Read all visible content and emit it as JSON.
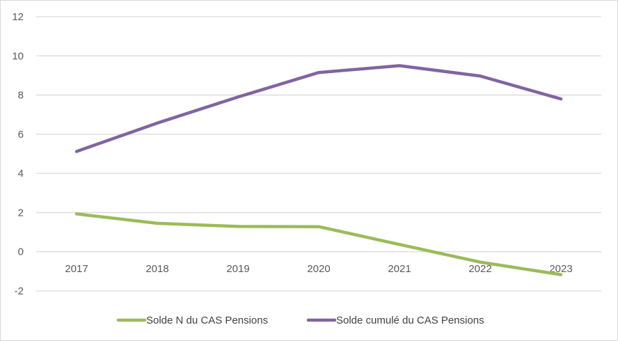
{
  "chart_data": {
    "type": "line",
    "title": "",
    "xlabel": "",
    "ylabel": "",
    "categories": [
      "2017",
      "2018",
      "2019",
      "2020",
      "2021",
      "2022",
      "2023"
    ],
    "ylim": [
      -2,
      12
    ],
    "yticks": [
      -2,
      0,
      2,
      4,
      6,
      8,
      10,
      12
    ],
    "ytick_labels": [
      "-2",
      "0",
      "2",
      "4",
      "6",
      "8",
      "10",
      "12"
    ],
    "grid": true,
    "legend_position": "bottom",
    "series": [
      {
        "name": "Solde N du CAS Pensions",
        "color": "#9bbb59",
        "values": [
          1.93,
          1.45,
          1.29,
          1.28,
          0.37,
          -0.53,
          -1.17
        ]
      },
      {
        "name": "Solde cumulé du CAS Pensions",
        "color": "#8064a2",
        "values": [
          5.12,
          6.57,
          7.9,
          9.15,
          9.5,
          8.97,
          7.8
        ]
      }
    ]
  }
}
